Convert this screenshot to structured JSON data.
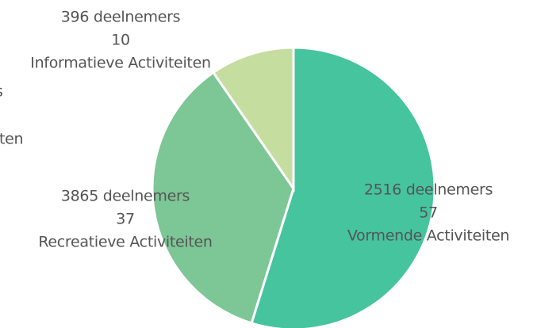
{
  "chart_data": {
    "type": "pie",
    "categories": [
      "Vormende Activiteiten",
      "Recreatieve Activiteiten",
      "Informatieve Activiteiten"
    ],
    "values": [
      57,
      37,
      10
    ],
    "participant_labels": [
      "2516 deelnemers",
      "3865 deelnemers",
      "396 deelnemers"
    ],
    "colors": [
      "#45c49e",
      "#7dc696",
      "#c6dda0"
    ],
    "start_angle": 0,
    "direction": "clockwise",
    "annotations": [
      "s",
      "iten"
    ]
  }
}
